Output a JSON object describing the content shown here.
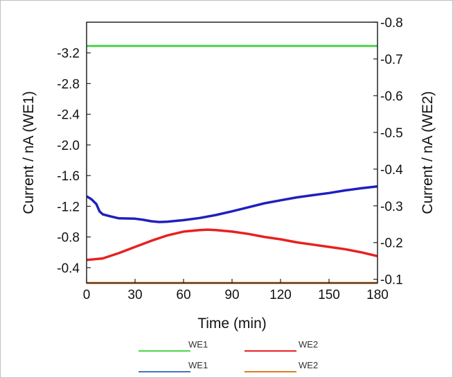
{
  "chart_data": {
    "type": "line",
    "xlabel": "Time (min)",
    "ylabel_left": "Current / nA (WE1)",
    "ylabel_right": "Current / nA (WE2)",
    "xlim": [
      0,
      180
    ],
    "ylim_left": [
      -0.2,
      -3.6
    ],
    "ylim_right": [
      -0.09,
      -0.8
    ],
    "x_ticks": [
      0,
      30,
      60,
      90,
      120,
      150,
      180
    ],
    "y_ticks_left": [
      -0.4,
      -0.8,
      -1.2,
      -1.6,
      -2.0,
      -2.4,
      -2.8,
      -3.2
    ],
    "y_ticks_right": [
      -0.1,
      -0.2,
      -0.3,
      -0.4,
      -0.5,
      -0.6,
      -0.7,
      -0.8
    ],
    "x_tick_labels": [
      "0",
      "30",
      "60",
      "90",
      "120",
      "150",
      "180"
    ],
    "y_tick_labels_left": [
      "-0.4",
      "-0.8",
      "-1.2",
      "-1.6",
      "-2.0",
      "-2.4",
      "-2.8",
      "-3.2"
    ],
    "y_tick_labels_right": [
      "-0.1",
      "-0.2",
      "-0.3",
      "-0.4",
      "-0.5",
      "-0.6",
      "-0.7",
      "-0.8"
    ],
    "grid": false,
    "legend_position": "bottom",
    "series": [
      {
        "name": "WE1",
        "axis": "left",
        "color": "#4cd44c",
        "x": [
          0,
          180
        ],
        "y": [
          -3.29,
          -3.29
        ]
      },
      {
        "name": "WE1",
        "axis": "right",
        "color": "#1f1fbf",
        "x": [
          0,
          3,
          6,
          8,
          10,
          15,
          20,
          30,
          35,
          40,
          45,
          50,
          55,
          60,
          70,
          80,
          90,
          100,
          110,
          120,
          130,
          140,
          150,
          160,
          170,
          180
        ],
        "y": [
          -0.326,
          -0.318,
          -0.305,
          -0.285,
          -0.277,
          -0.271,
          -0.266,
          -0.265,
          -0.262,
          -0.258,
          -0.256,
          -0.257,
          -0.259,
          -0.261,
          -0.267,
          -0.275,
          -0.285,
          -0.296,
          -0.307,
          -0.315,
          -0.323,
          -0.329,
          -0.335,
          -0.342,
          -0.348,
          -0.353
        ]
      },
      {
        "name": "WE2",
        "axis": "left",
        "color": "#e82020",
        "x": [
          0,
          10,
          20,
          30,
          40,
          50,
          60,
          70,
          75,
          80,
          90,
          100,
          110,
          120,
          130,
          140,
          150,
          160,
          170,
          180
        ],
        "y": [
          -0.5,
          -0.52,
          -0.59,
          -0.67,
          -0.75,
          -0.82,
          -0.87,
          -0.89,
          -0.895,
          -0.89,
          -0.87,
          -0.84,
          -0.8,
          -0.77,
          -0.73,
          -0.7,
          -0.67,
          -0.64,
          -0.6,
          -0.55
        ]
      },
      {
        "name": "WE2",
        "axis": "right",
        "color": "#e07a1e",
        "x": [
          0,
          180
        ],
        "y": [
          -0.09,
          -0.09
        ]
      }
    ]
  },
  "legend": [
    {
      "label": "WE1",
      "color": "#4cd44c"
    },
    {
      "label": "WE2",
      "color": "#e82020"
    },
    {
      "label": "WE1",
      "color": "#4a72c4"
    },
    {
      "label": "WE2",
      "color": "#e07a1e"
    }
  ]
}
